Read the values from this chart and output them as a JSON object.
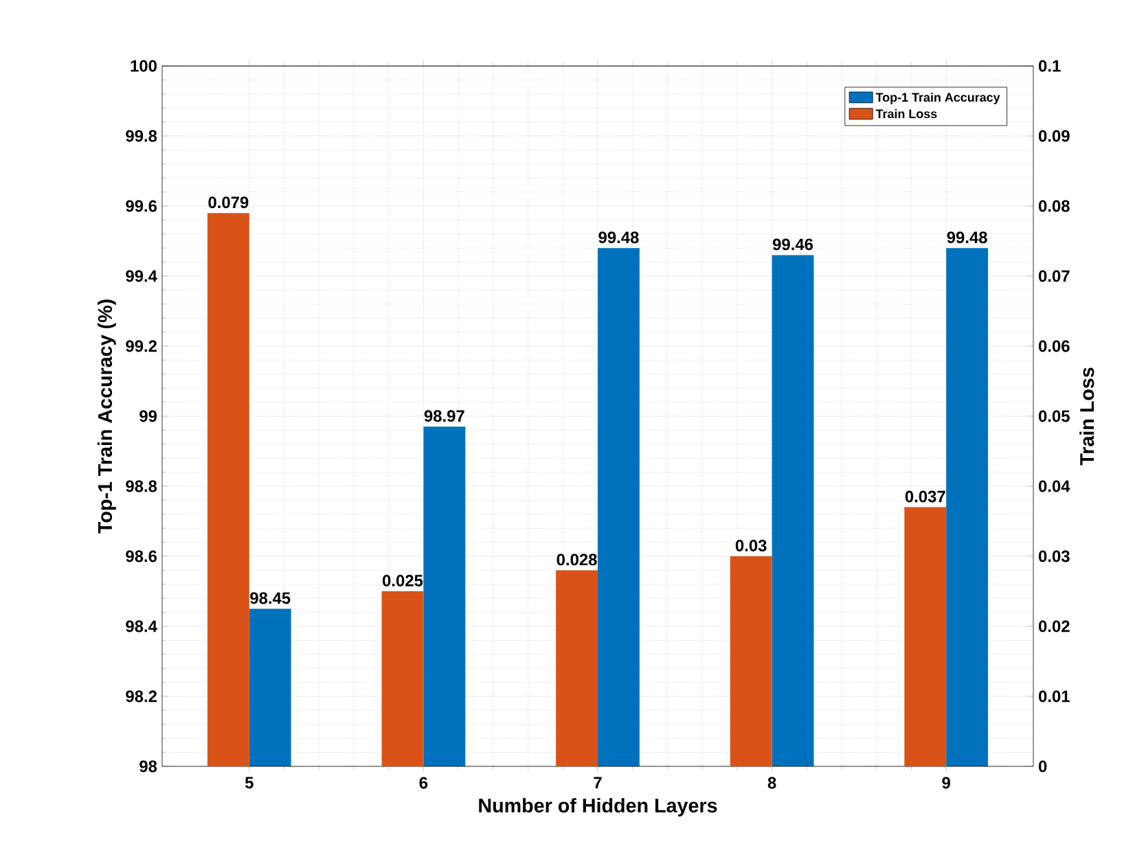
{
  "chart_data": {
    "type": "bar",
    "xlabel": "Number of Hidden Layers",
    "ylabel": "Top-1   Train  Accuracy (%)",
    "y2label": "Train Loss",
    "categories": [
      "5",
      "6",
      "7",
      "8",
      "9"
    ],
    "series": [
      {
        "name": "Top-1 Train Accuracy",
        "color": "#0072bd",
        "values": [
          98.45,
          98.97,
          99.48,
          99.46,
          99.48
        ]
      },
      {
        "name": "Train Loss",
        "color": "#d95319",
        "axis": "y2",
        "values": [
          0.079,
          0.025,
          0.028,
          0.03,
          0.037
        ]
      }
    ],
    "ylim": [
      98,
      100
    ],
    "yticks": [
      98,
      98.2,
      98.4,
      98.6,
      98.8,
      99,
      99.2,
      99.4,
      99.6,
      99.8,
      100
    ],
    "y2lim": [
      0,
      0.1
    ],
    "y2ticks": [
      0,
      0.01,
      0.02,
      0.03,
      0.04,
      0.05,
      0.06,
      0.07,
      0.08,
      0.09,
      0.1
    ],
    "data_labels": true,
    "grid": true,
    "legend": "top right"
  }
}
